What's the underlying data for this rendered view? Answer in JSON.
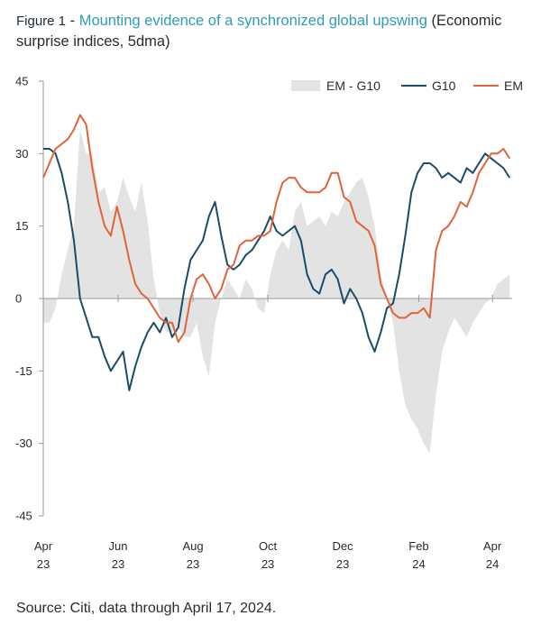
{
  "header": {
    "figure_label": "Figure 1",
    "separator": " - ",
    "title": "Mounting evidence of a synchronized global upswing",
    "subtitle": "(Economic surprise indices, 5dma)"
  },
  "footer": {
    "source": "Source: Citi, data through April 17, 2024."
  },
  "chart_data": {
    "type": "line",
    "title": "Mounting evidence of a synchronized global upswing",
    "subtitle": "(Economic surprise indices, 5dma)",
    "ylim": [
      -45,
      45
    ],
    "yticks": [
      45,
      30,
      15,
      0,
      -15,
      -30,
      -45
    ],
    "xlim": [
      "2023-04-01",
      "2024-04-20"
    ],
    "xticks": [
      {
        "date": "2023-04-01",
        "label": [
          "Apr",
          "23"
        ]
      },
      {
        "date": "2023-06-01",
        "label": [
          "Jun",
          "23"
        ]
      },
      {
        "date": "2023-08-01",
        "label": [
          "Aug",
          "23"
        ]
      },
      {
        "date": "2023-10-01",
        "label": [
          "Oct",
          "23"
        ]
      },
      {
        "date": "2023-12-01",
        "label": [
          "Dec",
          "23"
        ]
      },
      {
        "date": "2024-02-01",
        "label": [
          "Feb",
          "24"
        ]
      },
      {
        "date": "2024-04-01",
        "label": [
          "Apr",
          "24"
        ]
      }
    ],
    "legend_position": "top-right",
    "colors": {
      "area": "#e3e3e3",
      "g10": "#1c4b68",
      "em": "#e0643a",
      "axis": "#9a9a9a"
    },
    "series": [
      {
        "name": "EM - G10",
        "kind": "area",
        "points": [
          [
            "2023-04-01",
            -5
          ],
          [
            "2023-04-06",
            -5
          ],
          [
            "2023-04-11",
            -2
          ],
          [
            "2023-04-16",
            5
          ],
          [
            "2023-04-21",
            10
          ],
          [
            "2023-04-26",
            15
          ],
          [
            "2023-05-01",
            35
          ],
          [
            "2023-05-06",
            30
          ],
          [
            "2023-05-11",
            30
          ],
          [
            "2023-05-16",
            22
          ],
          [
            "2023-05-21",
            23
          ],
          [
            "2023-05-26",
            18
          ],
          [
            "2023-05-31",
            20
          ],
          [
            "2023-06-05",
            25
          ],
          [
            "2023-06-10",
            21
          ],
          [
            "2023-06-15",
            18
          ],
          [
            "2023-06-20",
            24
          ],
          [
            "2023-06-25",
            16
          ],
          [
            "2023-06-30",
            4
          ],
          [
            "2023-07-05",
            -3
          ],
          [
            "2023-07-10",
            -7
          ],
          [
            "2023-07-15",
            -7
          ],
          [
            "2023-07-20",
            -6
          ],
          [
            "2023-07-25",
            -8
          ],
          [
            "2023-07-30",
            -8
          ],
          [
            "2023-08-04",
            -5
          ],
          [
            "2023-08-09",
            -12
          ],
          [
            "2023-08-14",
            -16
          ],
          [
            "2023-08-19",
            -5
          ],
          [
            "2023-08-24",
            0
          ],
          [
            "2023-08-29",
            4
          ],
          [
            "2023-09-03",
            2
          ],
          [
            "2023-09-08",
            0
          ],
          [
            "2023-09-13",
            4
          ],
          [
            "2023-09-18",
            2
          ],
          [
            "2023-09-23",
            -2
          ],
          [
            "2023-09-28",
            -3
          ],
          [
            "2023-10-03",
            5
          ],
          [
            "2023-10-08",
            10
          ],
          [
            "2023-10-13",
            12
          ],
          [
            "2023-10-18",
            10
          ],
          [
            "2023-10-23",
            18
          ],
          [
            "2023-10-28",
            20
          ],
          [
            "2023-11-02",
            15
          ],
          [
            "2023-11-07",
            16
          ],
          [
            "2023-11-12",
            17
          ],
          [
            "2023-11-17",
            15
          ],
          [
            "2023-11-22",
            18
          ],
          [
            "2023-11-27",
            17
          ],
          [
            "2023-12-02",
            20
          ],
          [
            "2023-12-07",
            22
          ],
          [
            "2023-12-12",
            24
          ],
          [
            "2023-12-17",
            25
          ],
          [
            "2023-12-22",
            21
          ],
          [
            "2023-12-27",
            15
          ],
          [
            "2024-01-01",
            5
          ],
          [
            "2024-01-06",
            0
          ],
          [
            "2024-01-11",
            -5
          ],
          [
            "2024-01-16",
            -15
          ],
          [
            "2024-01-21",
            -22
          ],
          [
            "2024-01-26",
            -25
          ],
          [
            "2024-01-31",
            -27
          ],
          [
            "2024-02-05",
            -30
          ],
          [
            "2024-02-10",
            -32
          ],
          [
            "2024-02-15",
            -20
          ],
          [
            "2024-02-20",
            -11
          ],
          [
            "2024-02-25",
            -7
          ],
          [
            "2024-03-01",
            -4
          ],
          [
            "2024-03-06",
            -6
          ],
          [
            "2024-03-11",
            -8
          ],
          [
            "2024-03-16",
            -5
          ],
          [
            "2024-03-21",
            -3
          ],
          [
            "2024-03-26",
            -1
          ],
          [
            "2024-03-31",
            0
          ],
          [
            "2024-04-05",
            3
          ],
          [
            "2024-04-10",
            4
          ],
          [
            "2024-04-15",
            5
          ]
        ]
      },
      {
        "name": "G10",
        "kind": "line",
        "points": [
          [
            "2023-04-01",
            31
          ],
          [
            "2023-04-06",
            31
          ],
          [
            "2023-04-11",
            30
          ],
          [
            "2023-04-16",
            26
          ],
          [
            "2023-04-21",
            20
          ],
          [
            "2023-04-26",
            12
          ],
          [
            "2023-05-01",
            0
          ],
          [
            "2023-05-06",
            -4
          ],
          [
            "2023-05-11",
            -8
          ],
          [
            "2023-05-16",
            -8
          ],
          [
            "2023-05-21",
            -12
          ],
          [
            "2023-05-26",
            -15
          ],
          [
            "2023-05-31",
            -13
          ],
          [
            "2023-06-05",
            -11
          ],
          [
            "2023-06-10",
            -19
          ],
          [
            "2023-06-15",
            -14
          ],
          [
            "2023-06-20",
            -10
          ],
          [
            "2023-06-25",
            -7
          ],
          [
            "2023-06-30",
            -5
          ],
          [
            "2023-07-05",
            -7
          ],
          [
            "2023-07-10",
            -4
          ],
          [
            "2023-07-15",
            -8
          ],
          [
            "2023-07-20",
            -6
          ],
          [
            "2023-07-25",
            2
          ],
          [
            "2023-07-30",
            8
          ],
          [
            "2023-08-04",
            10
          ],
          [
            "2023-08-09",
            12
          ],
          [
            "2023-08-14",
            17
          ],
          [
            "2023-08-19",
            20
          ],
          [
            "2023-08-24",
            13
          ],
          [
            "2023-08-29",
            7
          ],
          [
            "2023-09-03",
            6
          ],
          [
            "2023-09-08",
            7
          ],
          [
            "2023-09-13",
            9
          ],
          [
            "2023-09-18",
            10
          ],
          [
            "2023-09-23",
            12
          ],
          [
            "2023-09-28",
            14
          ],
          [
            "2023-10-03",
            17
          ],
          [
            "2023-10-08",
            14
          ],
          [
            "2023-10-13",
            13
          ],
          [
            "2023-10-18",
            14
          ],
          [
            "2023-10-23",
            15
          ],
          [
            "2023-10-28",
            12
          ],
          [
            "2023-11-02",
            5
          ],
          [
            "2023-11-07",
            2
          ],
          [
            "2023-11-12",
            1
          ],
          [
            "2023-11-17",
            5
          ],
          [
            "2023-11-22",
            6
          ],
          [
            "2023-11-27",
            4
          ],
          [
            "2023-12-02",
            -1
          ],
          [
            "2023-12-07",
            2
          ],
          [
            "2023-12-12",
            0
          ],
          [
            "2023-12-17",
            -3
          ],
          [
            "2023-12-22",
            -8
          ],
          [
            "2023-12-27",
            -11
          ],
          [
            "2024-01-01",
            -7
          ],
          [
            "2024-01-06",
            -2
          ],
          [
            "2024-01-11",
            -1
          ],
          [
            "2024-01-16",
            5
          ],
          [
            "2024-01-21",
            13
          ],
          [
            "2024-01-26",
            22
          ],
          [
            "2024-01-31",
            26
          ],
          [
            "2024-02-05",
            28
          ],
          [
            "2024-02-10",
            28
          ],
          [
            "2024-02-15",
            27
          ],
          [
            "2024-02-20",
            25
          ],
          [
            "2024-02-25",
            26
          ],
          [
            "2024-03-01",
            25
          ],
          [
            "2024-03-06",
            24
          ],
          [
            "2024-03-11",
            27
          ],
          [
            "2024-03-16",
            26
          ],
          [
            "2024-03-21",
            28
          ],
          [
            "2024-03-26",
            30
          ],
          [
            "2024-03-31",
            29
          ],
          [
            "2024-04-05",
            28
          ],
          [
            "2024-04-10",
            27
          ],
          [
            "2024-04-15",
            25
          ]
        ]
      },
      {
        "name": "EM",
        "kind": "line",
        "points": [
          [
            "2023-04-01",
            25
          ],
          [
            "2023-04-06",
            28
          ],
          [
            "2023-04-11",
            31
          ],
          [
            "2023-04-16",
            32
          ],
          [
            "2023-04-21",
            33
          ],
          [
            "2023-04-26",
            35
          ],
          [
            "2023-05-01",
            38
          ],
          [
            "2023-05-06",
            36
          ],
          [
            "2023-05-11",
            27
          ],
          [
            "2023-05-16",
            20
          ],
          [
            "2023-05-21",
            15
          ],
          [
            "2023-05-26",
            13
          ],
          [
            "2023-05-31",
            19
          ],
          [
            "2023-06-05",
            14
          ],
          [
            "2023-06-10",
            8
          ],
          [
            "2023-06-15",
            3
          ],
          [
            "2023-06-20",
            1
          ],
          [
            "2023-06-25",
            0
          ],
          [
            "2023-06-30",
            -2
          ],
          [
            "2023-07-05",
            -4
          ],
          [
            "2023-07-10",
            -5
          ],
          [
            "2023-07-15",
            -5
          ],
          [
            "2023-07-20",
            -9
          ],
          [
            "2023-07-25",
            -7
          ],
          [
            "2023-07-30",
            0
          ],
          [
            "2023-08-04",
            4
          ],
          [
            "2023-08-09",
            5
          ],
          [
            "2023-08-14",
            3
          ],
          [
            "2023-08-19",
            0
          ],
          [
            "2023-08-24",
            2
          ],
          [
            "2023-08-29",
            6
          ],
          [
            "2023-09-03",
            7
          ],
          [
            "2023-09-08",
            11
          ],
          [
            "2023-09-13",
            12
          ],
          [
            "2023-09-18",
            12
          ],
          [
            "2023-09-23",
            13
          ],
          [
            "2023-09-28",
            13
          ],
          [
            "2023-10-03",
            14
          ],
          [
            "2023-10-08",
            20
          ],
          [
            "2023-10-13",
            24
          ],
          [
            "2023-10-18",
            25
          ],
          [
            "2023-10-23",
            25
          ],
          [
            "2023-10-28",
            23
          ],
          [
            "2023-11-02",
            22
          ],
          [
            "2023-11-07",
            22
          ],
          [
            "2023-11-12",
            22
          ],
          [
            "2023-11-17",
            23
          ],
          [
            "2023-11-22",
            26
          ],
          [
            "2023-11-27",
            26
          ],
          [
            "2023-12-02",
            21
          ],
          [
            "2023-12-07",
            20
          ],
          [
            "2023-12-12",
            16
          ],
          [
            "2023-12-17",
            15
          ],
          [
            "2023-12-22",
            14
          ],
          [
            "2023-12-27",
            11
          ],
          [
            "2024-01-01",
            3
          ],
          [
            "2024-01-06",
            0
          ],
          [
            "2024-01-11",
            -3
          ],
          [
            "2024-01-16",
            -4
          ],
          [
            "2024-01-21",
            -4
          ],
          [
            "2024-01-26",
            -3
          ],
          [
            "2024-01-31",
            -3
          ],
          [
            "2024-02-05",
            -2
          ],
          [
            "2024-02-10",
            -4
          ],
          [
            "2024-02-15",
            10
          ],
          [
            "2024-02-20",
            14
          ],
          [
            "2024-02-25",
            15
          ],
          [
            "2024-03-01",
            17
          ],
          [
            "2024-03-06",
            20
          ],
          [
            "2024-03-11",
            19
          ],
          [
            "2024-03-16",
            22
          ],
          [
            "2024-03-21",
            26
          ],
          [
            "2024-03-26",
            28
          ],
          [
            "2024-03-31",
            30
          ],
          [
            "2024-04-05",
            30
          ],
          [
            "2024-04-10",
            31
          ],
          [
            "2024-04-15",
            29
          ]
        ]
      }
    ]
  }
}
